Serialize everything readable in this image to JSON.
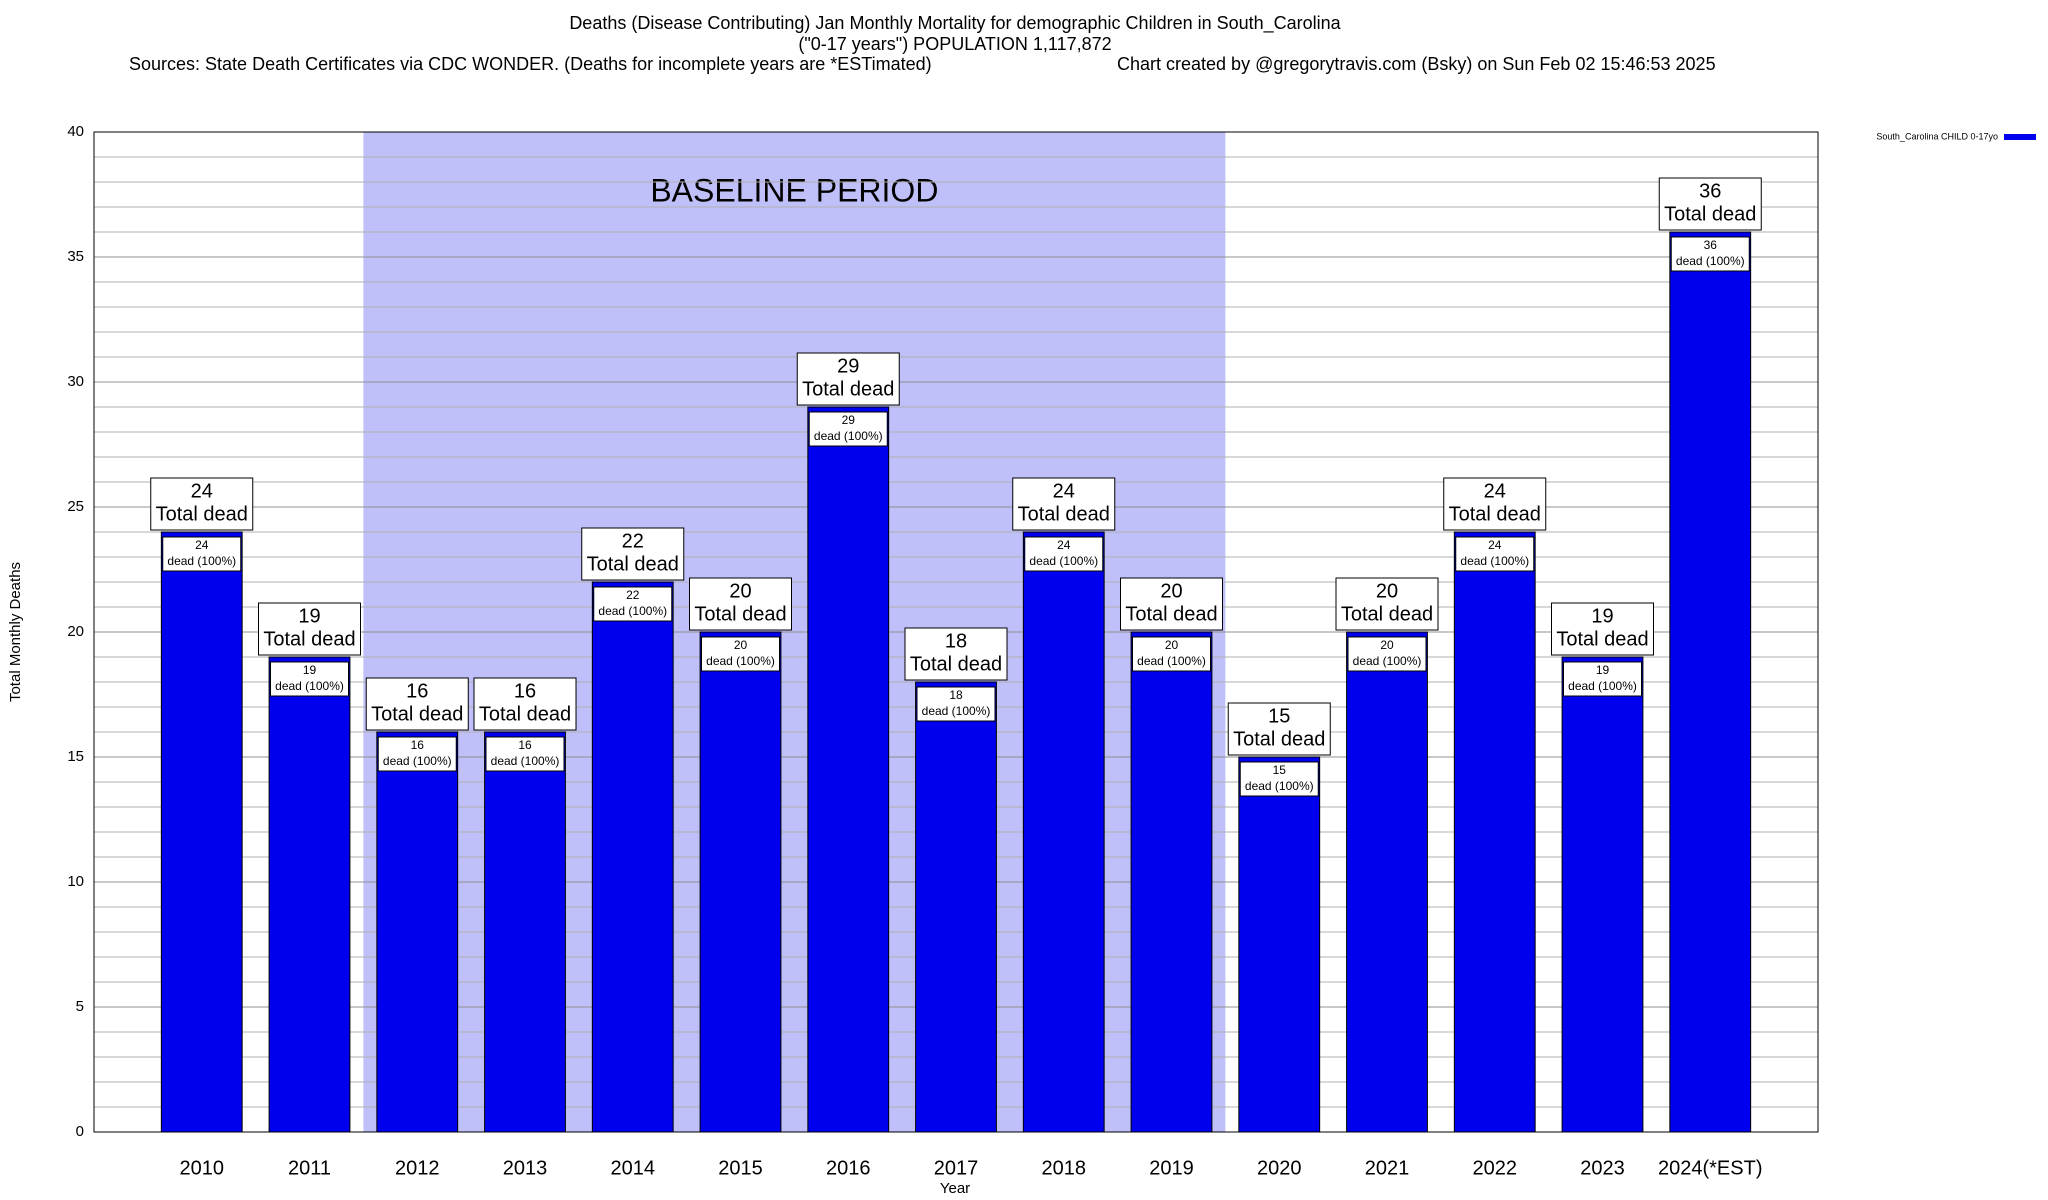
{
  "chart_data": {
    "type": "bar",
    "title_lines": [
      "Deaths (Disease Contributing) Jan Monthly Mortality for demographic Children in South_Carolina",
      "(\"0-17 years\") POPULATION 1,117,872"
    ],
    "sources": "Sources: State Death Certificates via CDC WONDER. (Deaths for incomplete years are *ESTimated)",
    "credit": "Chart created by @gregorytravis.com (Bsky) on Sun Feb 02 15:46:53 2025",
    "y_label": "Total Monthly Deaths",
    "x_label": "Year",
    "categories": [
      "2010",
      "2011",
      "2012",
      "2013",
      "2014",
      "2015",
      "2016",
      "2017",
      "2018",
      "2019",
      "2020",
      "2021",
      "2022",
      "2023",
      "2024(*EST)"
    ],
    "series": [
      {
        "name": "South_Carolina CHILD 0-17yo",
        "color": "#0000ee",
        "values": [
          24,
          19,
          16,
          16,
          22,
          20,
          29,
          18,
          24,
          20,
          15,
          20,
          24,
          19,
          36
        ]
      }
    ],
    "total_label": "Total dead",
    "inner_label": "dead (100%)",
    "baseline": {
      "label": "BASELINE PERIOD",
      "start": "2012",
      "end": "2019",
      "color": "#bfbff9"
    },
    "ylim": [
      0,
      40
    ],
    "yticks": [
      0,
      5,
      10,
      15,
      20,
      25,
      30,
      35,
      40
    ],
    "minor_ticks_per_major": 5,
    "grid": true,
    "legend": "top-right"
  }
}
